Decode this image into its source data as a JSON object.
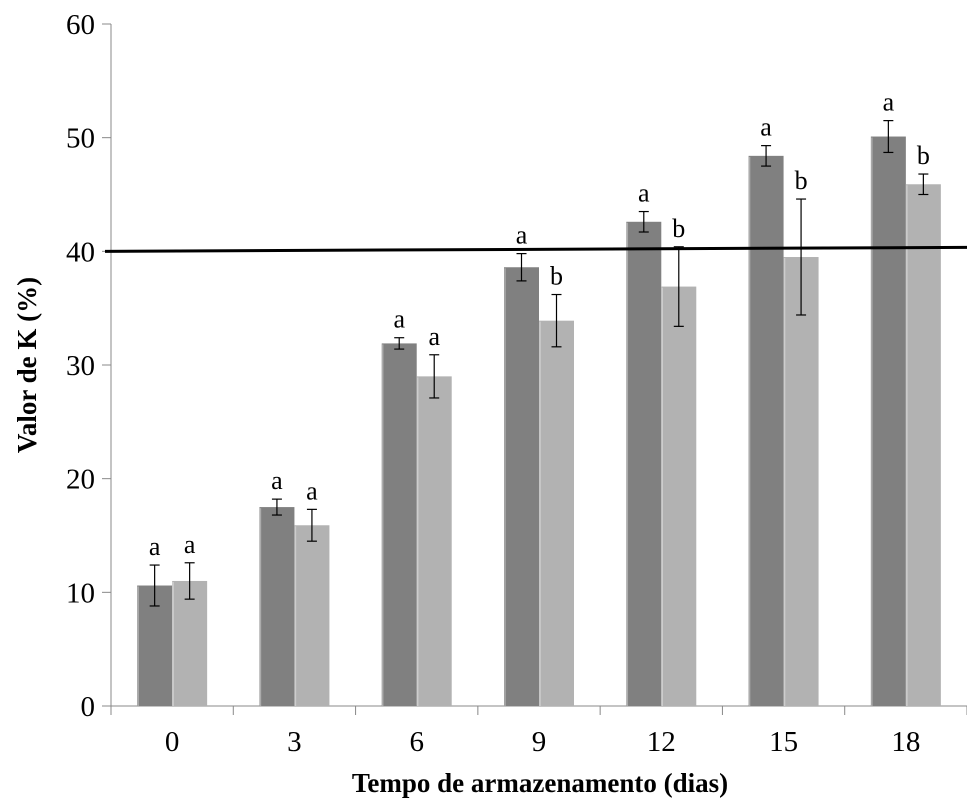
{
  "chart_data": {
    "type": "bar",
    "title": "",
    "xlabel": "Tempo de armazenamento (dias)",
    "ylabel": "Valor de K (%)",
    "categories": [
      "0",
      "3",
      "6",
      "9",
      "12",
      "15",
      "18"
    ],
    "ylim": [
      0,
      60
    ],
    "yticks": [
      "0",
      "10",
      "20",
      "30",
      "40",
      "50",
      "60"
    ],
    "grid": false,
    "legend": "none",
    "reference_line": {
      "y": 40,
      "color": "#000000"
    },
    "series": [
      {
        "color": "#808080",
        "values": [
          10.6,
          17.5,
          31.9,
          38.6,
          42.6,
          48.4,
          50.1
        ],
        "errors": [
          1.8,
          0.7,
          0.5,
          1.2,
          0.9,
          0.9,
          1.4
        ],
        "labels": [
          "a",
          "a",
          "a",
          "a",
          "a",
          "a",
          "a"
        ]
      },
      {
        "color": "#b2b2b2",
        "values": [
          11.0,
          15.9,
          29.0,
          33.9,
          36.9,
          39.5,
          45.9
        ],
        "errors": [
          1.6,
          1.4,
          1.9,
          2.3,
          3.5,
          5.1,
          0.9
        ],
        "labels": [
          "a",
          "a",
          "a",
          "b",
          "b",
          "b",
          "b"
        ]
      }
    ]
  }
}
